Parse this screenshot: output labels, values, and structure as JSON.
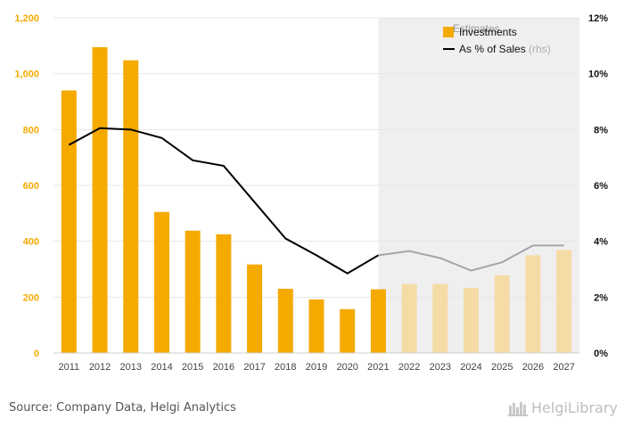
{
  "chart_data": {
    "type": "bar",
    "categories": [
      "2011",
      "2012",
      "2013",
      "2014",
      "2015",
      "2016",
      "2017",
      "2018",
      "2019",
      "2020",
      "2021",
      "2022",
      "2023",
      "2024",
      "2025",
      "2026",
      "2027"
    ],
    "series": [
      {
        "name": "Investments",
        "axis": "left",
        "values": [
          940,
          1095,
          1048,
          505,
          438,
          425,
          317,
          230,
          192,
          157,
          228,
          247,
          247,
          233,
          278,
          350,
          369
        ]
      },
      {
        "name": "As % of Sales",
        "name_suffix": "(rhs)",
        "type": "line",
        "axis": "right",
        "values": [
          7.45,
          8.05,
          8.0,
          7.7,
          6.9,
          6.7,
          5.4,
          4.1,
          3.5,
          2.85,
          3.5,
          3.65,
          3.4,
          2.95,
          3.25,
          3.85,
          3.85
        ]
      }
    ],
    "estimates_from": "2021",
    "estimates_label": "Estimates",
    "left_axis": {
      "ylim": [
        0,
        1200
      ],
      "ticks": [
        "0",
        "200",
        "400",
        "600",
        "800",
        "1,000",
        "1,200"
      ]
    },
    "right_axis": {
      "ylim": [
        0,
        12
      ],
      "ticks": [
        "0%",
        "2%",
        "4%",
        "6%",
        "8%",
        "10%",
        "12%"
      ]
    },
    "grid": true,
    "legend_position": "top-right",
    "colors": {
      "bar_actual": "#f5aa00",
      "bar_estimate": "#f5dba6",
      "line_actual": "#000000",
      "line_estimate": "#a6a6a6",
      "estimate_band": "#efefef",
      "left_tick": "#f5aa00"
    }
  },
  "footer": {
    "source": "Source: Company Data, Helgi Analytics",
    "logo_text": "HelgiLibrary"
  }
}
